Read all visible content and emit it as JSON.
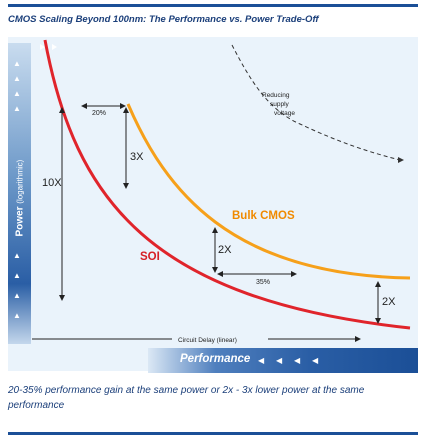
{
  "title": "CMOS Scaling Beyond 100nm: The Performance vs. Power Trade-Off",
  "y_axis": {
    "label": "Power",
    "sub": "(logarithmic)"
  },
  "x_axis": {
    "label": "Circuit Delay (linear)",
    "performance_label": "Performance"
  },
  "curves": {
    "soi": "SOI",
    "bulk": "Bulk CMOS"
  },
  "annotations": {
    "ten_x": "10X",
    "three_x": "3X",
    "two_x_mid": "2X",
    "two_x_right": "2X",
    "pct_top": "20%",
    "pct_mid": "35%",
    "reducing_1": "Reducing",
    "reducing_2": "supply",
    "reducing_3": "voltage"
  },
  "caption": "20-35% performance gain at the same power or 2x - 3x lower power at the same performance",
  "colors": {
    "soi": "#e0242b",
    "bulk": "#f6a01a",
    "brand": "#1b4f97"
  }
}
